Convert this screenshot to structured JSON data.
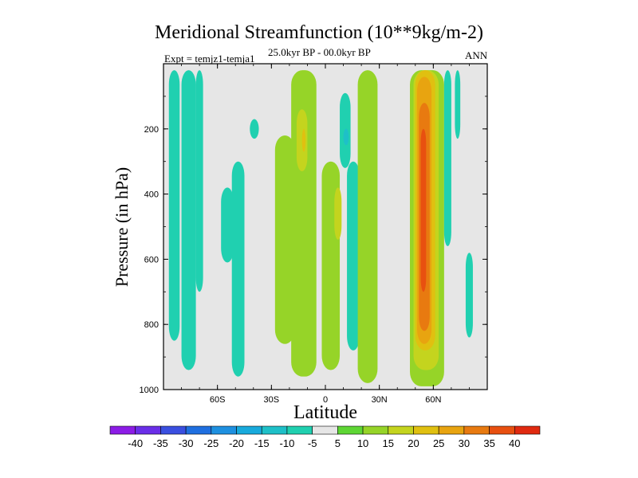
{
  "chart_data": {
    "type": "heatmap",
    "title": "Meridional Streamfunction (10**9kg/m-2)",
    "subtitle": "25.0kyr BP - 00.0kyr BP",
    "left_label": "Expt = temjz1-temja1",
    "right_label": "ANN",
    "xlabel": "Latitude",
    "ylabel": "Pressure (in hPa)",
    "xlim": [
      -90,
      90
    ],
    "ylim": [
      1000,
      0
    ],
    "x_ticks": [
      {
        "value": -60,
        "label": "60S"
      },
      {
        "value": -30,
        "label": "30S"
      },
      {
        "value": 0,
        "label": "0"
      },
      {
        "value": 30,
        "label": "30N"
      },
      {
        "value": 60,
        "label": "60N"
      }
    ],
    "y_ticks": [
      {
        "value": 200,
        "label": "200"
      },
      {
        "value": 400,
        "label": "400"
      },
      {
        "value": 600,
        "label": "600"
      },
      {
        "value": 800,
        "label": "800"
      },
      {
        "value": 1000,
        "label": "1000"
      }
    ],
    "background_color": "#e6e6e6",
    "colorbar": {
      "levels": [
        "-40",
        "-35",
        "-30",
        "-25",
        "-20",
        "-15",
        "-10",
        "-5",
        "5",
        "10",
        "15",
        "20",
        "25",
        "30",
        "35",
        "40"
      ],
      "colors": [
        "#8c1ce6",
        "#6a2ee8",
        "#3a4fe0",
        "#1f6fe0",
        "#1e90e0",
        "#18aadc",
        "#1ec0c8",
        "#20d0b0",
        "#e6e6e6",
        "#5ed634",
        "#96d428",
        "#c4d41e",
        "#e0c010",
        "#e8a410",
        "#e87a10",
        "#e85010",
        "#e02a10"
      ]
    },
    "regions": [
      {
        "level": -10,
        "lat": [
          -87,
          -81
        ],
        "p": [
          20,
          850
        ]
      },
      {
        "level": -10,
        "lat": [
          -80,
          -72
        ],
        "p": [
          20,
          940
        ]
      },
      {
        "level": -10,
        "lat": [
          -72,
          -68
        ],
        "p": [
          20,
          700
        ]
      },
      {
        "level": -10,
        "lat": [
          -58,
          -51
        ],
        "p": [
          380,
          610
        ]
      },
      {
        "level": -10,
        "lat": [
          -52,
          -45
        ],
        "p": [
          300,
          960
        ]
      },
      {
        "level": -10,
        "lat": [
          -42,
          -37
        ],
        "p": [
          170,
          230
        ]
      },
      {
        "level": 10,
        "lat": [
          -28,
          -17
        ],
        "p": [
          220,
          860
        ]
      },
      {
        "level": 10,
        "lat": [
          -19,
          -5
        ],
        "p": [
          20,
          960
        ]
      },
      {
        "level": 15,
        "lat": [
          -16,
          -10
        ],
        "p": [
          140,
          330
        ]
      },
      {
        "level": 20,
        "lat": [
          -13,
          -11
        ],
        "p": [
          200,
          270
        ]
      },
      {
        "level": 10,
        "lat": [
          -2,
          8
        ],
        "p": [
          300,
          940
        ]
      },
      {
        "level": 15,
        "lat": [
          5,
          9
        ],
        "p": [
          380,
          540
        ]
      },
      {
        "level": -10,
        "lat": [
          8,
          14
        ],
        "p": [
          90,
          320
        ]
      },
      {
        "level": -15,
        "lat": [
          10,
          13
        ],
        "p": [
          200,
          250
        ]
      },
      {
        "level": -10,
        "lat": [
          12,
          19
        ],
        "p": [
          300,
          880
        ]
      },
      {
        "level": 10,
        "lat": [
          18,
          29
        ],
        "p": [
          20,
          980
        ]
      },
      {
        "level": 10,
        "lat": [
          47,
          66
        ],
        "p": [
          20,
          990
        ]
      },
      {
        "level": 15,
        "lat": [
          49,
          63
        ],
        "p": [
          20,
          940
        ]
      },
      {
        "level": 20,
        "lat": [
          50,
          61
        ],
        "p": [
          20,
          880
        ]
      },
      {
        "level": 25,
        "lat": [
          51,
          59
        ],
        "p": [
          40,
          860
        ]
      },
      {
        "level": 30,
        "lat": [
          52,
          58
        ],
        "p": [
          120,
          820
        ]
      },
      {
        "level": 35,
        "lat": [
          53,
          56
        ],
        "p": [
          200,
          700
        ]
      },
      {
        "level": -10,
        "lat": [
          66,
          70
        ],
        "p": [
          20,
          560
        ]
      },
      {
        "level": -10,
        "lat": [
          72,
          75
        ],
        "p": [
          20,
          230
        ]
      },
      {
        "level": -10,
        "lat": [
          78,
          82
        ],
        "p": [
          580,
          840
        ]
      }
    ]
  }
}
